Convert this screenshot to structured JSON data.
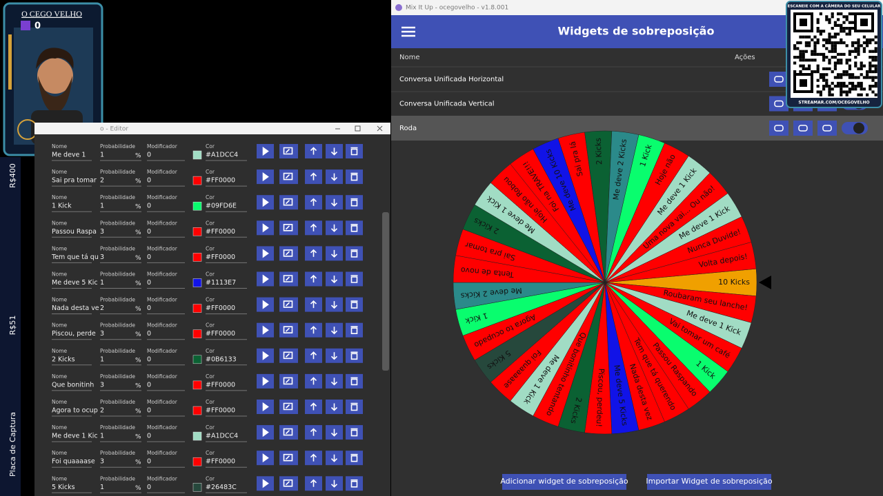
{
  "overlay": {
    "channel": "O CEGO VELHO",
    "viewers": "0"
  },
  "sidebar": {
    "labels": [
      "R$400",
      "R$51",
      "Placa de Captura"
    ]
  },
  "editor": {
    "title": "o - Editor",
    "labels": {
      "name": "Nome",
      "probability": "Probabilidade",
      "modifier": "Modificador",
      "color": "Cor",
      "percent": "%"
    },
    "rows": [
      {
        "name": "Me deve 1",
        "probability": 1,
        "modifier": 0,
        "color": "#A1DCC4"
      },
      {
        "name": "Sai pra tomar",
        "probability": 2,
        "modifier": 0,
        "color": "#FF0000"
      },
      {
        "name": "1 Kick",
        "probability": 1,
        "modifier": 0,
        "color": "#09FD6E"
      },
      {
        "name": "Passou Raspa",
        "probability": 3,
        "modifier": 0,
        "color": "#FF0000"
      },
      {
        "name": "Tem que tá qu",
        "probability": 3,
        "modifier": 0,
        "color": "#FF0000"
      },
      {
        "name": "Me deve 5 Kic",
        "probability": 1,
        "modifier": 0,
        "color": "#1113E7"
      },
      {
        "name": "Nada desta ve",
        "probability": 2,
        "modifier": 0,
        "color": "#FF0000"
      },
      {
        "name": "Piscou, perde",
        "probability": 3,
        "modifier": 0,
        "color": "#FF0000"
      },
      {
        "name": "2 Kicks",
        "probability": 1,
        "modifier": 0,
        "color": "#0B6133"
      },
      {
        "name": "Que bonitinh",
        "probability": 3,
        "modifier": 0,
        "color": "#FF0000"
      },
      {
        "name": "Agora to ocup",
        "probability": 2,
        "modifier": 0,
        "color": "#FF0000"
      },
      {
        "name": "Me deve 1 Kic",
        "probability": 1,
        "modifier": 0,
        "color": "#A1DCC4"
      },
      {
        "name": "Foi quaaaase",
        "probability": 3,
        "modifier": 0,
        "color": "#FF0000"
      },
      {
        "name": "5 Kicks",
        "probability": 1,
        "modifier": 0,
        "color": "#26483C"
      }
    ]
  },
  "app": {
    "window_title": "Mix It Up - ocegovelho - v1.8.001",
    "header": "Widgets de sobreposição",
    "columns": [
      "Nome",
      "Ações"
    ],
    "widgets": [
      "Conversa Unificada Horizontal",
      "Conversa Unificada Vertical",
      "Roda"
    ],
    "buttons": [
      "Adicionar widget de sobreposição",
      "Importar Widget de sobreposição"
    ]
  },
  "wheel": {
    "segments": [
      {
        "label": "10 Kicks",
        "color": "#F0A000"
      },
      {
        "label": "Roubaram seu lanche!",
        "color": "#FF0000"
      },
      {
        "label": "Me deve 1 Kick",
        "color": "#A1DCC4"
      },
      {
        "label": "Vai tomar um café",
        "color": "#FF0000"
      },
      {
        "label": "1 Kick",
        "color": "#09FD6E"
      },
      {
        "label": "Passou Raspando",
        "color": "#FF0000"
      },
      {
        "label": "Tem que tá querendo",
        "color": "#FF0000"
      },
      {
        "label": "Nada desta vez",
        "color": "#FF0000"
      },
      {
        "label": "Me deve 5 Kicks",
        "color": "#1113E7"
      },
      {
        "label": "Piscou, perdeu!",
        "color": "#FF0000"
      },
      {
        "label": "2 Kicks",
        "color": "#0B6133"
      },
      {
        "label": "Que bonitinho tentando",
        "color": "#FF0000"
      },
      {
        "label": "Me deve 1 Kick",
        "color": "#A1DCC4"
      },
      {
        "label": "Foi quaaaase",
        "color": "#FF0000"
      },
      {
        "label": "5 Kicks",
        "color": "#26483C"
      },
      {
        "label": "Agora to ocupado",
        "color": "#FF0000"
      },
      {
        "label": "1 Kick",
        "color": "#09FD6E"
      },
      {
        "label": "Me deve 2 Kicks",
        "color": "#2B8A8A"
      },
      {
        "label": "Tenta de novo",
        "color": "#FF0000"
      },
      {
        "label": "Sai pra tomar",
        "color": "#FF0000"
      },
      {
        "label": "2 Kicks",
        "color": "#0B6133"
      },
      {
        "label": "Me deve 1 Kick",
        "color": "#A1DCC4"
      },
      {
        "label": "Hoje não Robou",
        "color": "#FF0000"
      },
      {
        "label": "Foi na TRAVE!!!",
        "color": "#FF0000"
      },
      {
        "label": "Me deve 10 Kicks",
        "color": "#1113E7"
      },
      {
        "label": "Sai pra lá",
        "color": "#FF0000"
      },
      {
        "label": "2 Kicks",
        "color": "#0B6133"
      },
      {
        "label": "Me deve 2 Kicks",
        "color": "#2B8A8A"
      },
      {
        "label": "1 Kick",
        "color": "#09FD6E"
      },
      {
        "label": "Hoje não",
        "color": "#FF0000"
      },
      {
        "label": "Me deve 1 Kick",
        "color": "#A1DCC4"
      },
      {
        "label": "Uma nova vai... Ou não!",
        "color": "#FF0000"
      },
      {
        "label": "Me deve 1 Kick",
        "color": "#A1DCC4"
      },
      {
        "label": "Nunca Duvide!",
        "color": "#FF0000"
      },
      {
        "label": "Volta depois!",
        "color": "#FF0000"
      }
    ]
  },
  "qr": {
    "top": "ESCANEIE COM A CÂMERA DO SEU CELULAR",
    "bottom": "STREAMAR.COM/OCEGOVELHO"
  }
}
